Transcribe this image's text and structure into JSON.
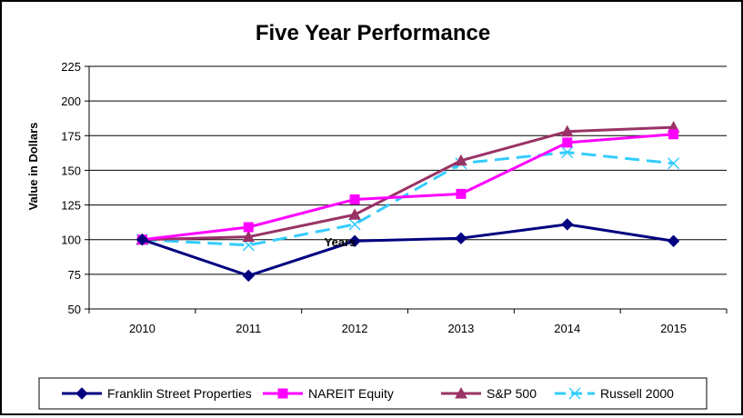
{
  "chart_data": {
    "type": "line",
    "title": "Five Year Performance",
    "xlabel": "Years",
    "ylabel": "Value in Dollars",
    "categories": [
      "2010",
      "2011",
      "2012",
      "2013",
      "2014",
      "2015"
    ],
    "ylim": [
      50,
      225
    ],
    "yticks": [
      50,
      75,
      100,
      125,
      150,
      175,
      200,
      225
    ],
    "grid": true,
    "legend_position": "bottom",
    "series": [
      {
        "name": "Franklin Street Properties",
        "values": [
          100,
          74,
          99,
          101,
          111,
          99
        ],
        "color": "#000080",
        "marker": "diamond",
        "dash": "solid"
      },
      {
        "name": "NAREIT Equity",
        "values": [
          100,
          109,
          129,
          133,
          170,
          176
        ],
        "color": "#ff00ff",
        "marker": "square",
        "dash": "solid"
      },
      {
        "name": "S&P 500",
        "values": [
          100,
          102,
          118,
          157,
          178,
          181
        ],
        "color": "#993366",
        "marker": "triangle",
        "dash": "solid"
      },
      {
        "name": "Russell 2000",
        "values": [
          100,
          96,
          111,
          155,
          163,
          155
        ],
        "color": "#33ccff",
        "marker": "x",
        "dash": "dashed"
      }
    ]
  }
}
